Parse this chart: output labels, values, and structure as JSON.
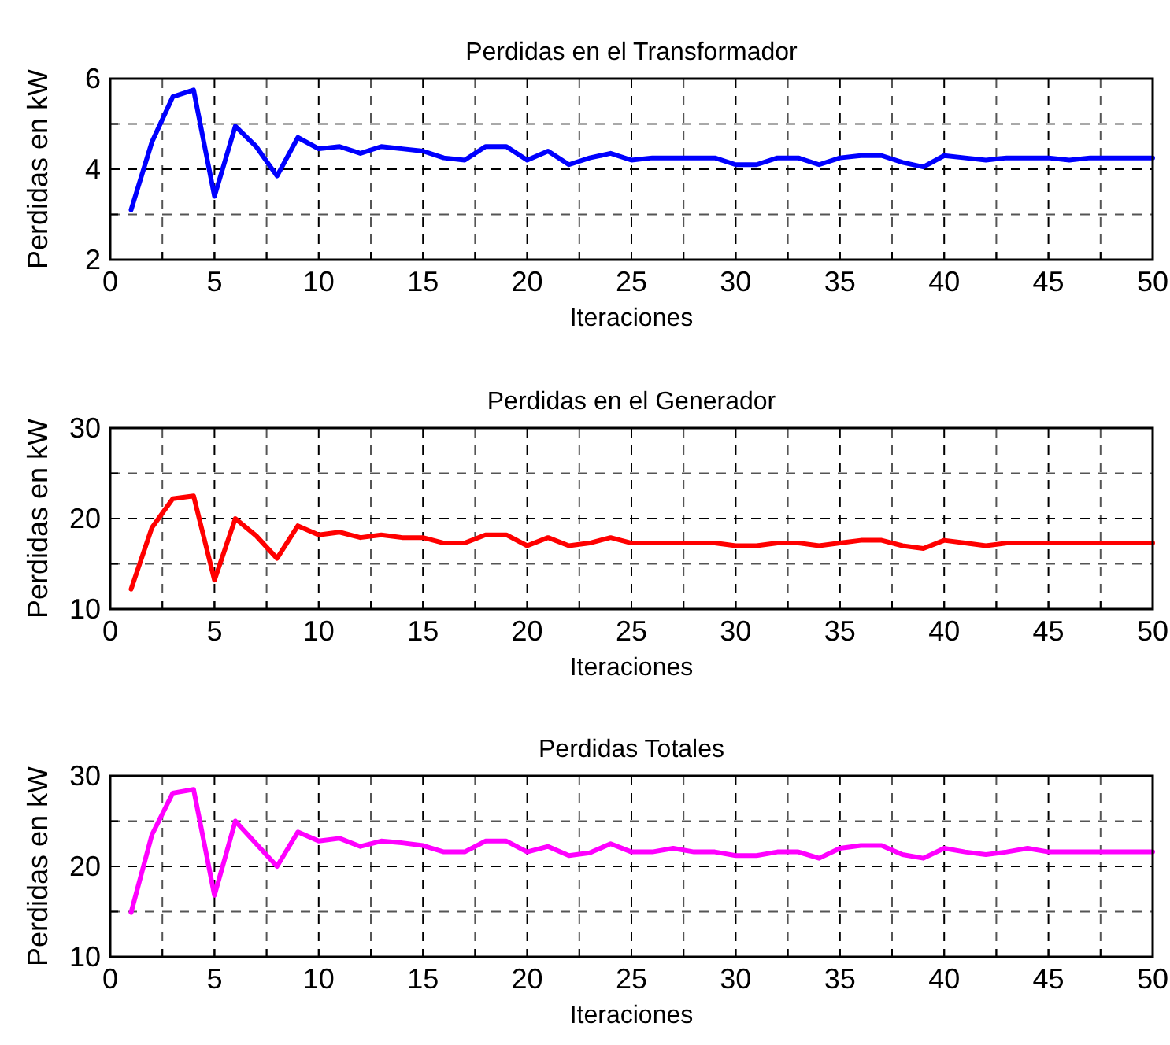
{
  "chart_data": [
    {
      "type": "line",
      "title": "Perdidas en el Transformador",
      "xlabel": "Iteraciones",
      "ylabel": "Perdidas en kW",
      "x": [
        1,
        2,
        3,
        4,
        5,
        6,
        7,
        8,
        9,
        10,
        11,
        12,
        13,
        14,
        15,
        16,
        17,
        18,
        19,
        20,
        21,
        22,
        23,
        24,
        25,
        26,
        27,
        28,
        29,
        30,
        31,
        32,
        33,
        34,
        35,
        36,
        37,
        38,
        39,
        40,
        41,
        42,
        43,
        44,
        45,
        46,
        47,
        48,
        49,
        50
      ],
      "series": [
        {
          "color": "#0000ff",
          "values": [
            3.1,
            4.6,
            5.6,
            5.75,
            3.4,
            4.95,
            4.5,
            3.85,
            4.7,
            4.45,
            4.5,
            4.35,
            4.5,
            4.45,
            4.4,
            4.25,
            4.2,
            4.5,
            4.5,
            4.2,
            4.4,
            4.1,
            4.25,
            4.35,
            4.2,
            4.25,
            4.25,
            4.25,
            4.25,
            4.1,
            4.1,
            4.25,
            4.25,
            4.1,
            4.25,
            4.3,
            4.3,
            4.15,
            4.05,
            4.3,
            4.25,
            4.2,
            4.25,
            4.25,
            4.25,
            4.2,
            4.25,
            4.25,
            4.25,
            4.25
          ]
        }
      ],
      "xlim": [
        0,
        50
      ],
      "xticks": [
        0,
        {
          "value": 2.5,
          "label": null
        },
        5,
        {
          "value": 7.5,
          "label": null
        },
        10,
        {
          "value": 12.5,
          "label": null
        },
        15,
        {
          "value": 17.5,
          "label": null
        },
        20,
        {
          "value": 22.5,
          "label": null
        },
        25,
        {
          "value": 27.5,
          "label": null
        },
        30,
        {
          "value": 32.5,
          "label": null
        },
        35,
        {
          "value": 37.5,
          "label": null
        },
        40,
        {
          "value": 42.5,
          "label": null
        },
        45,
        {
          "value": 47.5,
          "label": null
        },
        50
      ],
      "ylim": [
        2,
        6
      ],
      "yticks": [
        2,
        {
          "value": 3,
          "label": null
        },
        4,
        {
          "value": 5,
          "label": null
        },
        6
      ],
      "grid": true,
      "line_style": "solid"
    },
    {
      "type": "line",
      "title": "Perdidas en el Generador",
      "xlabel": "Iteraciones",
      "ylabel": "Perdidas en kW",
      "x": [
        1,
        2,
        3,
        4,
        5,
        6,
        7,
        8,
        9,
        10,
        11,
        12,
        13,
        14,
        15,
        16,
        17,
        18,
        19,
        20,
        21,
        22,
        23,
        24,
        25,
        26,
        27,
        28,
        29,
        30,
        31,
        32,
        33,
        34,
        35,
        36,
        37,
        38,
        39,
        40,
        41,
        42,
        43,
        44,
        45,
        46,
        47,
        48,
        49,
        50
      ],
      "series": [
        {
          "color": "#ff0000",
          "values": [
            12.2,
            19,
            22.2,
            22.5,
            13.2,
            20,
            18.1,
            15.6,
            19.2,
            18.2,
            18.5,
            17.9,
            18.2,
            17.9,
            17.9,
            17.3,
            17.3,
            18.2,
            18.2,
            17,
            17.9,
            17,
            17.3,
            17.9,
            17.3,
            17.3,
            17.3,
            17.3,
            17.3,
            17,
            17,
            17.3,
            17.3,
            17,
            17.3,
            17.6,
            17.6,
            17,
            16.7,
            17.6,
            17.3,
            17,
            17.3,
            17.3,
            17.3,
            17.3,
            17.3,
            17.3,
            17.3,
            17.3
          ]
        }
      ],
      "xlim": [
        0,
        50
      ],
      "xticks": [
        0,
        {
          "value": 2.5,
          "label": null
        },
        5,
        {
          "value": 7.5,
          "label": null
        },
        10,
        {
          "value": 12.5,
          "label": null
        },
        15,
        {
          "value": 17.5,
          "label": null
        },
        20,
        {
          "value": 22.5,
          "label": null
        },
        25,
        {
          "value": 27.5,
          "label": null
        },
        30,
        {
          "value": 32.5,
          "label": null
        },
        35,
        {
          "value": 37.5,
          "label": null
        },
        40,
        {
          "value": 42.5,
          "label": null
        },
        45,
        {
          "value": 47.5,
          "label": null
        },
        50
      ],
      "ylim": [
        10,
        30
      ],
      "yticks": [
        10,
        {
          "value": 15,
          "label": null
        },
        20,
        {
          "value": 25,
          "label": null
        },
        30
      ],
      "grid": true,
      "line_style": "solid"
    },
    {
      "type": "line",
      "title": "Perdidas Totales",
      "xlabel": "Iteraciones",
      "ylabel": "Perdidas en kW",
      "x": [
        1,
        2,
        3,
        4,
        5,
        6,
        7,
        8,
        9,
        10,
        11,
        12,
        13,
        14,
        15,
        16,
        17,
        18,
        19,
        20,
        21,
        22,
        23,
        24,
        25,
        26,
        27,
        28,
        29,
        30,
        31,
        32,
        33,
        34,
        35,
        36,
        37,
        38,
        39,
        40,
        41,
        42,
        43,
        44,
        45,
        46,
        47,
        48,
        49,
        50
      ],
      "series": [
        {
          "color": "#ff00ff",
          "values": [
            14.9,
            23.5,
            28.1,
            28.5,
            16.8,
            25,
            22.5,
            20,
            23.8,
            22.8,
            23.1,
            22.2,
            22.8,
            22.6,
            22.3,
            21.6,
            21.6,
            22.8,
            22.8,
            21.6,
            22.2,
            21.2,
            21.5,
            22.5,
            21.6,
            21.6,
            22,
            21.6,
            21.6,
            21.2,
            21.2,
            21.6,
            21.6,
            20.9,
            22,
            22.3,
            22.3,
            21.3,
            20.9,
            22,
            21.6,
            21.3,
            21.6,
            22,
            21.6,
            21.6,
            21.6,
            21.6,
            21.6,
            21.6
          ]
        }
      ],
      "xlim": [
        0,
        50
      ],
      "xticks": [
        0,
        {
          "value": 2.5,
          "label": null
        },
        5,
        {
          "value": 7.5,
          "label": null
        },
        10,
        {
          "value": 12.5,
          "label": null
        },
        15,
        {
          "value": 17.5,
          "label": null
        },
        20,
        {
          "value": 22.5,
          "label": null
        },
        25,
        {
          "value": 27.5,
          "label": null
        },
        30,
        {
          "value": 32.5,
          "label": null
        },
        35,
        {
          "value": 37.5,
          "label": null
        },
        40,
        {
          "value": 42.5,
          "label": null
        },
        45,
        {
          "value": 47.5,
          "label": null
        },
        50
      ],
      "ylim": [
        10,
        30
      ],
      "yticks": [
        10,
        {
          "value": 15,
          "label": null
        },
        20,
        {
          "value": 25,
          "label": null
        },
        30
      ],
      "grid": true,
      "line_style": "solid"
    }
  ]
}
